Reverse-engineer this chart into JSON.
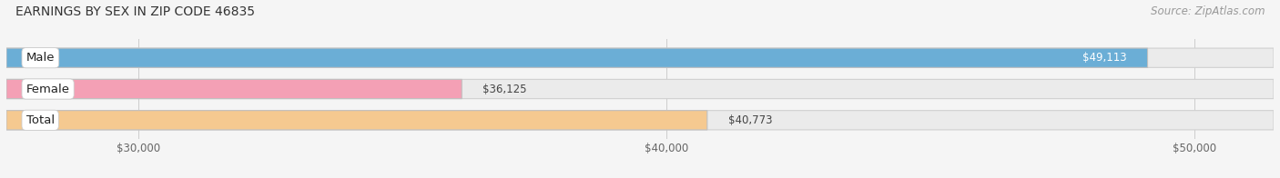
{
  "title": "EARNINGS BY SEX IN ZIP CODE 46835",
  "source": "Source: ZipAtlas.com",
  "categories": [
    "Male",
    "Female",
    "Total"
  ],
  "values": [
    49113,
    36125,
    40773
  ],
  "bar_colors": [
    "#6baed6",
    "#f4a0b5",
    "#f5c990"
  ],
  "value_labels": [
    "$49,113",
    "$36,125",
    "$40,773"
  ],
  "value_label_inside": [
    true,
    false,
    false
  ],
  "x_min": 27500,
  "x_max": 51500,
  "x_ticks": [
    30000,
    40000,
    50000
  ],
  "x_tick_labels": [
    "$30,000",
    "$40,000",
    "$50,000"
  ],
  "background_color": "#f5f5f5",
  "bar_bg_color": "#ebebeb",
  "title_fontsize": 10,
  "source_fontsize": 8.5,
  "label_fontsize": 9.5,
  "value_fontsize": 8.5,
  "tick_fontsize": 8.5
}
